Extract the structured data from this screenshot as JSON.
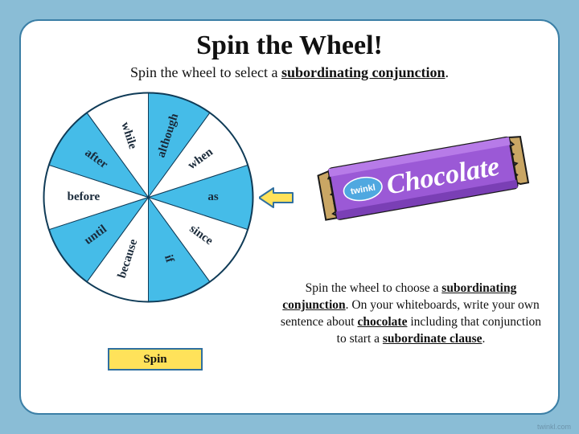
{
  "page_bg": "#8abdd6",
  "card": {
    "bg": "#ffffff",
    "border": "#3b7fa6",
    "radius": 24
  },
  "title": "Spin the Wheel!",
  "subtitle_prefix": "Spin the wheel to select a ",
  "subtitle_em": "subordinating conjunction",
  "subtitle_suffix": ".",
  "wheel": {
    "radius": 130,
    "colors_alt": [
      "#45bce8",
      "#ffffff"
    ],
    "outline": "#0f3b57",
    "label_color": "#1a2a3a",
    "label_fontsize": 15,
    "segments": [
      "as",
      "since",
      "if",
      "because",
      "until",
      "before",
      "after",
      "while",
      "although",
      "when"
    ]
  },
  "pointer": {
    "fill": "#ffe25a",
    "stroke": "#2f6fa0"
  },
  "spin_button": {
    "label": "Spin",
    "fill": "#ffe25a",
    "border": "#2f6fa0"
  },
  "chocolate": {
    "wrapper_main": "#9b59d6",
    "wrapper_dark": "#7a3fb5",
    "wrapper_end": "#c9a664",
    "text": "Chocolate",
    "brand": "twinkl",
    "brand_bubble": "#4fa8e0",
    "text_color": "#ffffff",
    "outline": "#1a1a1a"
  },
  "instructions": {
    "p1a": "Spin the wheel to choose a ",
    "p1b": "subordinating conjunction",
    "p1c": ". On your whiteboards, write your own sentence about ",
    "p1d": "chocolate",
    "p1e": " including that conjunction to start a ",
    "p1f": "subordinate clause",
    "p1g": "."
  },
  "watermark": "twinkl.com"
}
